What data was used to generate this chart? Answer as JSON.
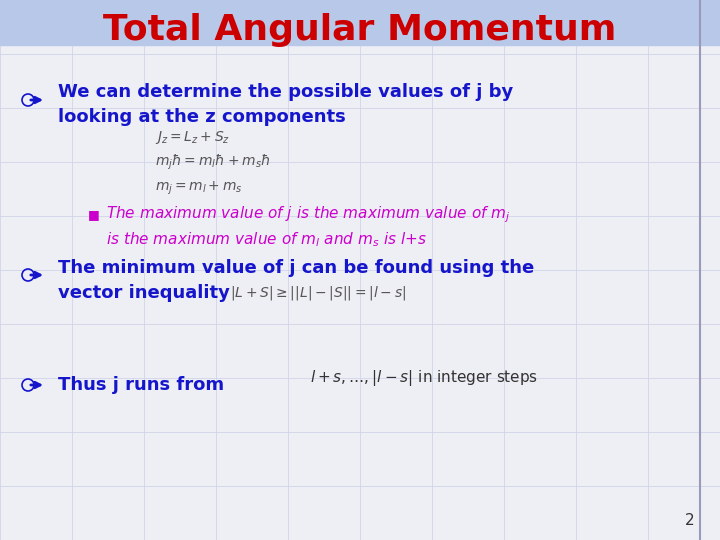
{
  "title": "Total Angular Momentum",
  "title_color": "#cc0000",
  "title_fontsize": 26,
  "bg_color": "#eeeef5",
  "grid_color": "#d0d4e8",
  "bullet_color": "#1515cc",
  "magenta_color": "#cc00cc",
  "header_bg": "#b8c8e8",
  "bullet1_line1": "We can determine the possible values of j by",
  "bullet1_line2": "looking at the z components",
  "bullet2_line1": "The minimum value of j can be found using the",
  "bullet2_line2": "vector inequality",
  "bullet3_text": "Thus j runs from",
  "page_num": "2",
  "grid_nx": 10,
  "grid_ny": 10
}
